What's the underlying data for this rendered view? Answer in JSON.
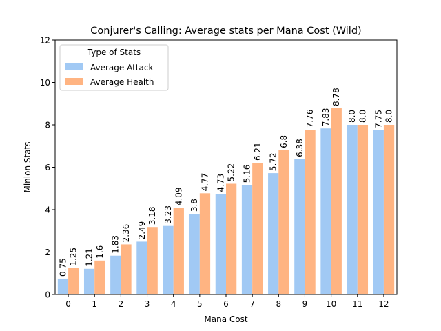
{
  "chart_data": {
    "type": "bar",
    "title": "Conjurer's Calling: Average stats per Mana Cost (Wild)",
    "xlabel": "Mana Cost",
    "ylabel": "Minion Stats",
    "categories": [
      "0",
      "1",
      "2",
      "3",
      "4",
      "5",
      "6",
      "7",
      "8",
      "9",
      "10",
      "11",
      "12"
    ],
    "ylim": [
      0,
      12
    ],
    "yticks": [
      "0",
      "2",
      "4",
      "6",
      "8",
      "10",
      "12"
    ],
    "legend": {
      "title": "Type of Stats",
      "placement": "upper-left"
    },
    "grid": false,
    "series": [
      {
        "name": "Average Attack",
        "color": "#a1c9f4",
        "values": [
          0.75,
          1.21,
          1.83,
          2.49,
          3.23,
          3.8,
          4.73,
          5.16,
          5.72,
          6.38,
          7.83,
          8.0,
          7.75
        ],
        "labels": [
          "0.75",
          "1.21",
          "1.83",
          "2.49",
          "3.23",
          "3.8",
          "4.73",
          "5.16",
          "5.72",
          "6.38",
          "7.83",
          "8.0",
          "7.75"
        ]
      },
      {
        "name": "Average Health",
        "color": "#ffb482",
        "values": [
          1.25,
          1.6,
          2.36,
          3.18,
          4.09,
          4.77,
          5.22,
          6.21,
          6.8,
          7.76,
          8.78,
          8.0,
          8.0
        ],
        "labels": [
          "1.25",
          "1.6",
          "2.36",
          "3.18",
          "4.09",
          "4.77",
          "5.22",
          "6.21",
          "6.8",
          "7.76",
          "8.78",
          "8.0",
          "8.0"
        ]
      }
    ]
  }
}
